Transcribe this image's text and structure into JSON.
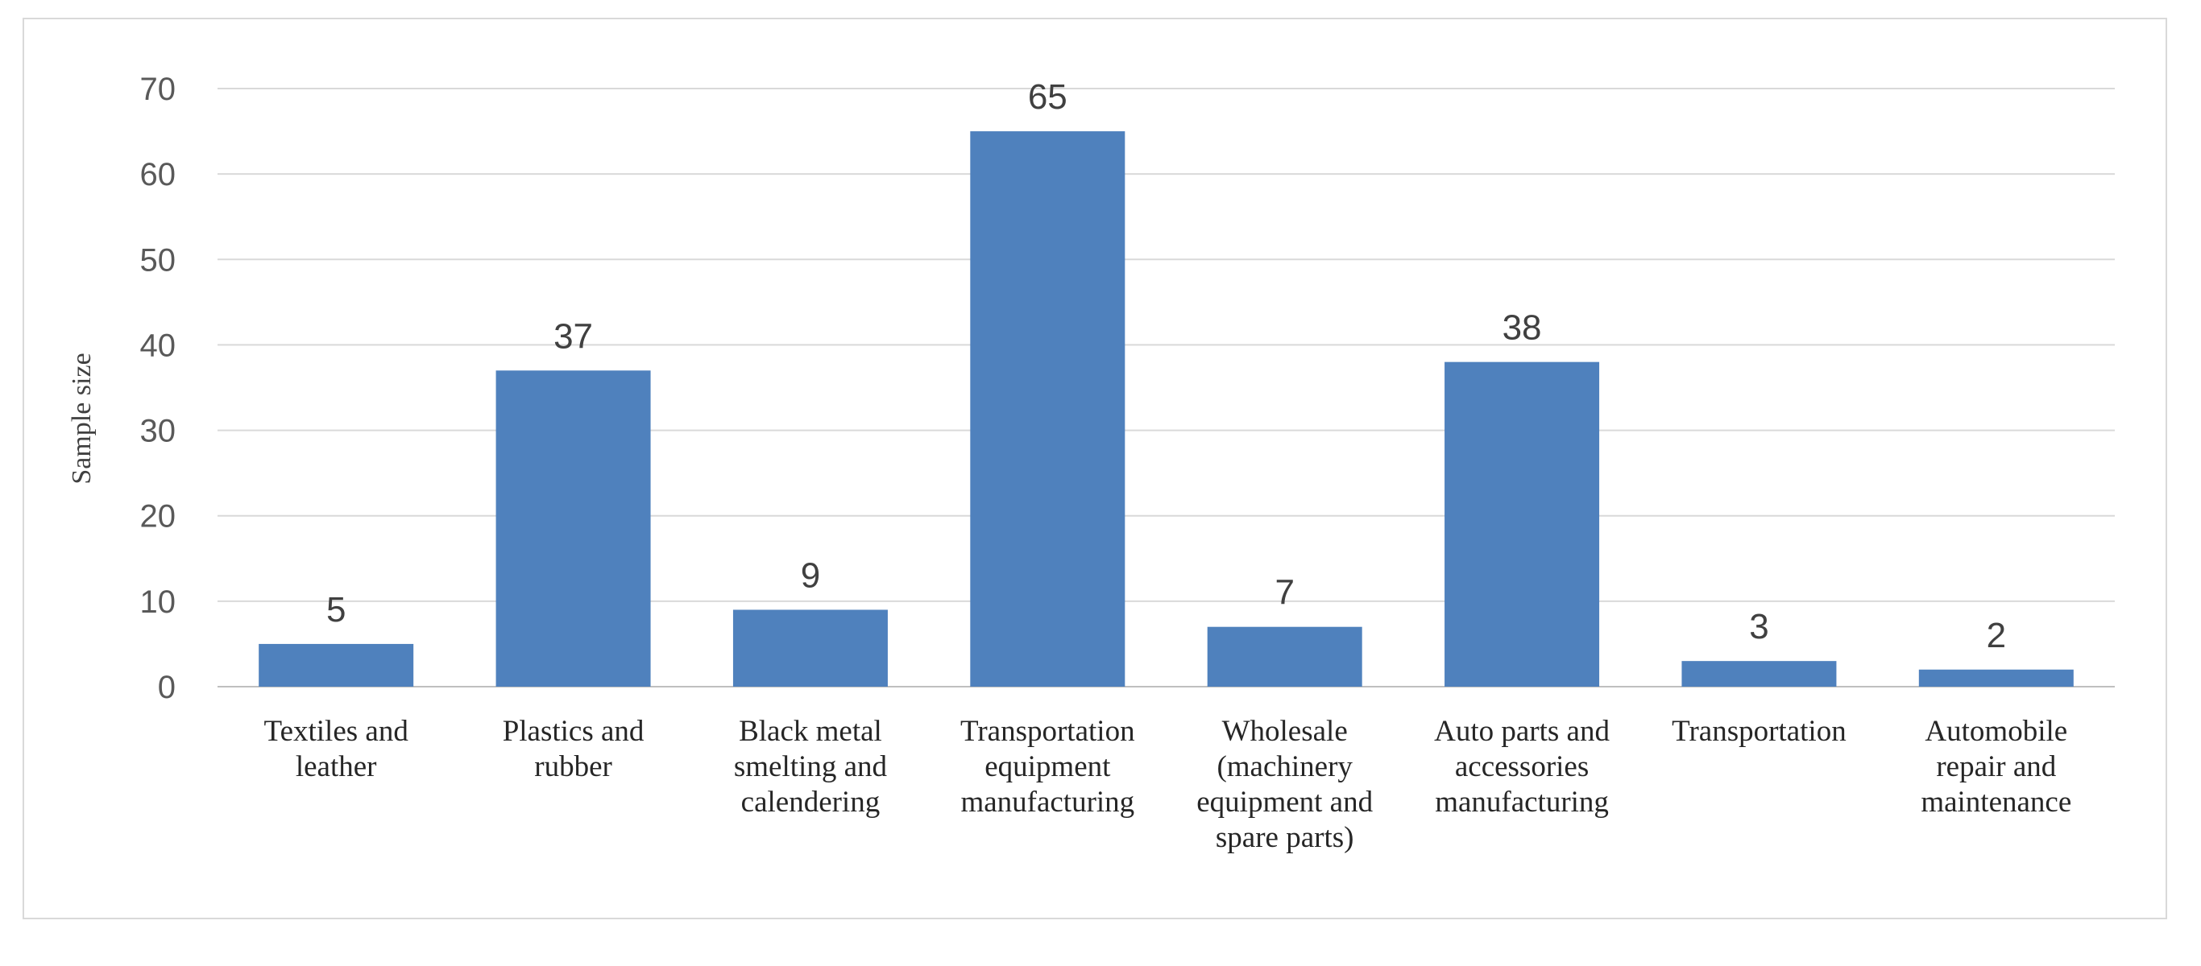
{
  "chart_data": {
    "type": "bar",
    "categories": [
      [
        "Textiles and",
        "leather"
      ],
      [
        "Plastics and",
        "rubber"
      ],
      [
        "Black metal",
        "smelting and",
        "calendering"
      ],
      [
        "Transportation",
        "equipment",
        "manufacturing"
      ],
      [
        "Wholesale",
        "(machinery",
        "equipment and",
        "spare parts)"
      ],
      [
        "Auto parts and",
        "accessories",
        "manufacturing"
      ],
      [
        "Transportation"
      ],
      [
        "Automobile",
        "repair and",
        "maintenance"
      ]
    ],
    "values": [
      5,
      37,
      9,
      65,
      7,
      38,
      3,
      2
    ],
    "xlabel": "",
    "ylabel": "Sample size",
    "ylim": [
      0,
      70
    ],
    "yticks": [
      0,
      10,
      20,
      30,
      40,
      50,
      60,
      70
    ],
    "grid": true,
    "bar_color": "#4f81bd",
    "data_labels": true
  }
}
